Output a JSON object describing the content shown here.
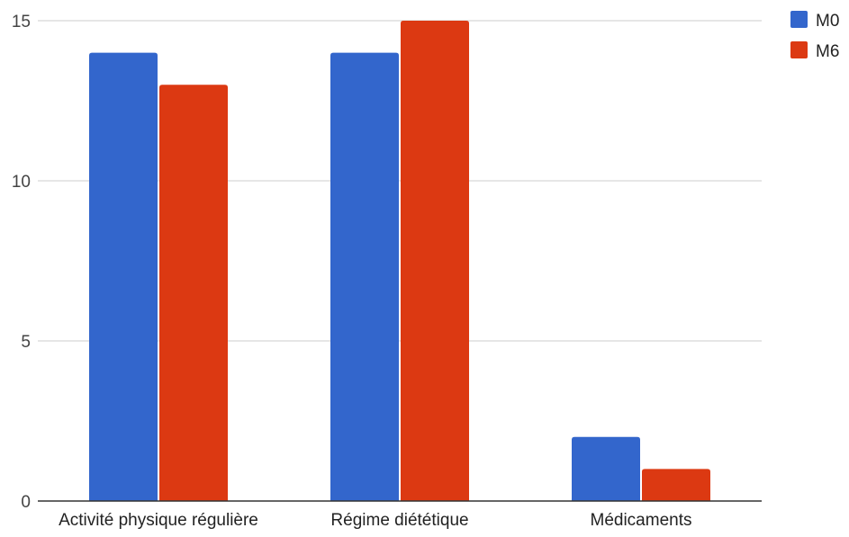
{
  "chart_data": {
    "type": "bar",
    "title": "",
    "xlabel": "",
    "ylabel": "",
    "categories": [
      "Activité physique régulière",
      "Régime diététique",
      "Médicaments"
    ],
    "series": [
      {
        "name": "M0",
        "values": [
          14,
          14,
          2
        ],
        "color": "#3366cc"
      },
      {
        "name": "M6",
        "values": [
          13,
          15,
          1
        ],
        "color": "#dc3912"
      }
    ],
    "ylim": [
      0,
      15
    ],
    "yticks": [
      0,
      5,
      10,
      15
    ],
    "grid": true,
    "legend_position": "top-right"
  }
}
